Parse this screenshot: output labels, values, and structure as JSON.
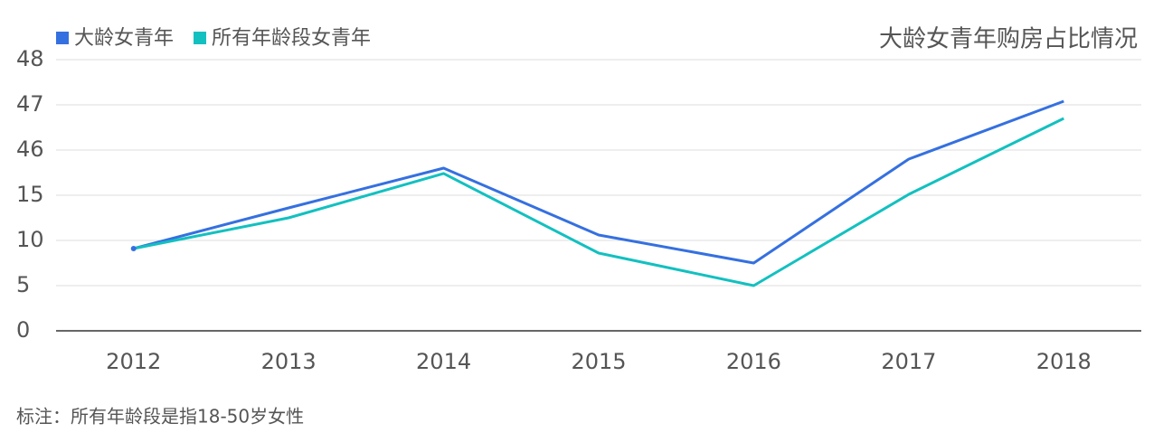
{
  "chart_data": {
    "type": "line",
    "title": "大龄女青年购房占比情况",
    "note": "标注：所有年龄段是指18-50岁女性",
    "categories": [
      "2012",
      "2013",
      "2014",
      "2015",
      "2016",
      "2017",
      "2018"
    ],
    "series": [
      {
        "name": "大龄女青年",
        "color": "#3570e0",
        "values": [
          9.1,
          13.6,
          33.6,
          10.6,
          7.5,
          39.8,
          47.08
        ]
      },
      {
        "name": "所有年龄段女青年",
        "color": "#13c0c0",
        "values": [
          9.1,
          12.5,
          29.9,
          8.6,
          5.0,
          15.6,
          46.7
        ]
      }
    ],
    "ylim": [
      0,
      48
    ],
    "yticks": [
      0,
      5,
      10,
      15,
      46,
      47,
      48
    ],
    "grid": true,
    "legend": "top-left"
  }
}
